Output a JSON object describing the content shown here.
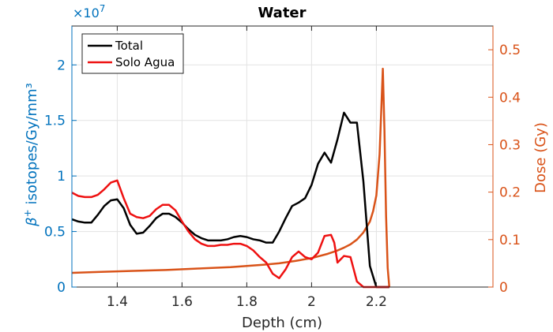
{
  "chart_data": {
    "type": "line",
    "title": "Water",
    "xlabel": "Depth (cm)",
    "ylabel_left": {
      "prefix": "β",
      "sup": "+",
      "rest": " isotopes/Gy/mm³"
    },
    "ylabel_right": "Dose (Gy)",
    "y_left_exponent": {
      "base": "×10",
      "exp": "7"
    },
    "xlim": [
      1.26,
      2.56
    ],
    "ylim_left": [
      0,
      2.35
    ],
    "ylim_right": [
      0,
      0.55
    ],
    "xticks": [
      1.4,
      1.6,
      1.8,
      2.0,
      2.2
    ],
    "xtick_labels": [
      "1.4",
      "1.6",
      "1.8",
      "2",
      "2.2"
    ],
    "yticks_left": [
      0,
      0.5,
      1,
      1.5,
      2
    ],
    "ytick_labels_left": [
      "0",
      "0.5",
      "1",
      "1.5",
      "2"
    ],
    "yticks_right": [
      0,
      0.1,
      0.2,
      0.3,
      0.4,
      0.5
    ],
    "ytick_labels_right": [
      "0",
      "0.1",
      "0.2",
      "0.3",
      "0.4",
      "0.5"
    ],
    "grid": true,
    "legend_position": "top-left",
    "colors": {
      "left_axis": "#0072BD",
      "right_axis": "#D95319",
      "total": "#000000",
      "solo_agua": "#ee1111",
      "dose": "#D95319"
    },
    "series": [
      {
        "name": "Total",
        "axis": "left",
        "color": "#000000",
        "x": [
          1.26,
          1.28,
          1.3,
          1.32,
          1.34,
          1.36,
          1.38,
          1.4,
          1.42,
          1.44,
          1.46,
          1.48,
          1.5,
          1.52,
          1.54,
          1.56,
          1.58,
          1.6,
          1.62,
          1.64,
          1.66,
          1.68,
          1.7,
          1.72,
          1.74,
          1.76,
          1.78,
          1.8,
          1.82,
          1.84,
          1.86,
          1.88,
          1.9,
          1.92,
          1.94,
          1.96,
          1.98,
          2.0,
          2.02,
          2.04,
          2.06,
          2.08,
          2.1,
          2.12,
          2.14,
          2.16,
          2.18,
          2.2,
          2.22,
          2.24
        ],
        "y": [
          0.61,
          0.59,
          0.58,
          0.58,
          0.65,
          0.73,
          0.78,
          0.79,
          0.71,
          0.56,
          0.48,
          0.49,
          0.55,
          0.62,
          0.66,
          0.66,
          0.63,
          0.58,
          0.52,
          0.47,
          0.44,
          0.42,
          0.42,
          0.42,
          0.43,
          0.45,
          0.46,
          0.45,
          0.43,
          0.42,
          0.4,
          0.4,
          0.5,
          0.62,
          0.73,
          0.76,
          0.8,
          0.92,
          1.11,
          1.21,
          1.12,
          1.33,
          1.57,
          1.48,
          1.48,
          0.95,
          0.19,
          0.0,
          0.0,
          0.0
        ]
      },
      {
        "name": "Solo Agua",
        "axis": "left",
        "color": "#ee1111",
        "x": [
          1.26,
          1.28,
          1.3,
          1.32,
          1.34,
          1.36,
          1.38,
          1.4,
          1.42,
          1.44,
          1.46,
          1.48,
          1.5,
          1.52,
          1.54,
          1.56,
          1.58,
          1.6,
          1.62,
          1.64,
          1.66,
          1.68,
          1.7,
          1.72,
          1.74,
          1.76,
          1.78,
          1.8,
          1.82,
          1.84,
          1.86,
          1.88,
          1.9,
          1.92,
          1.94,
          1.96,
          1.98,
          2.0,
          2.02,
          2.04,
          2.06,
          2.07,
          2.08,
          2.1,
          2.12,
          2.14,
          2.16,
          2.18,
          2.2,
          2.22,
          2.24
        ],
        "y": [
          0.85,
          0.82,
          0.81,
          0.81,
          0.83,
          0.88,
          0.94,
          0.96,
          0.8,
          0.66,
          0.63,
          0.62,
          0.64,
          0.7,
          0.74,
          0.74,
          0.69,
          0.59,
          0.5,
          0.43,
          0.39,
          0.37,
          0.37,
          0.38,
          0.38,
          0.39,
          0.39,
          0.37,
          0.33,
          0.27,
          0.22,
          0.12,
          0.08,
          0.16,
          0.27,
          0.32,
          0.27,
          0.25,
          0.31,
          0.46,
          0.47,
          0.4,
          0.22,
          0.28,
          0.27,
          0.05,
          0.0,
          0.0,
          0.0,
          0.0,
          0.0
        ]
      },
      {
        "name": "Dose",
        "axis": "right",
        "color": "#D95319",
        "x": [
          1.26,
          1.35,
          1.45,
          1.55,
          1.65,
          1.75,
          1.85,
          1.9,
          1.95,
          2.0,
          2.05,
          2.08,
          2.1,
          2.12,
          2.14,
          2.16,
          2.18,
          2.19,
          2.2,
          2.21,
          2.215,
          2.22,
          2.225,
          2.23,
          2.235,
          2.24
        ],
        "y": [
          0.03,
          0.032,
          0.034,
          0.036,
          0.039,
          0.042,
          0.047,
          0.05,
          0.055,
          0.061,
          0.07,
          0.077,
          0.083,
          0.09,
          0.1,
          0.115,
          0.138,
          0.16,
          0.193,
          0.28,
          0.37,
          0.46,
          0.33,
          0.15,
          0.04,
          0.0
        ]
      }
    ]
  }
}
